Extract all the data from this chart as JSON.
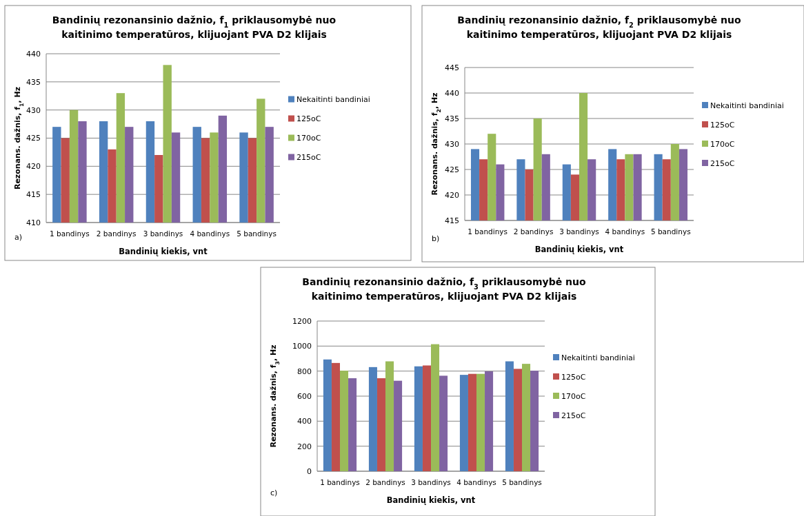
{
  "chart_data": [
    {
      "type": "bar",
      "title": "Bandinių rezonansinio dažnio, f$_{1}$ priklausomybė nuo kaitinimo temperatūros, klijuojant PVA D2 klijais",
      "xlabel": "Bandinių kiekis, vnt",
      "ylabel": "Rezonans. dažnis, f$_{1}$, Hz",
      "categories": [
        "1 bandinys",
        "2 bandinys",
        "3 bandinys",
        "4 bandinys",
        "5 bandinys"
      ],
      "ylim": [
        410,
        440
      ],
      "yticks": [
        410,
        415,
        420,
        425,
        430,
        435,
        440
      ],
      "grid": "y",
      "legend": "right",
      "annotations": [
        "a)"
      ],
      "series": [
        {
          "name": "Nekaitinti bandiniai",
          "color": "#4f81bd",
          "values": [
            427,
            428,
            428,
            427,
            426
          ]
        },
        {
          "name": "125oC",
          "color": "#c0504d",
          "values": [
            425,
            423,
            422,
            425,
            425
          ]
        },
        {
          "name": "170oC",
          "color": "#9bbb59",
          "values": [
            430,
            433,
            438,
            426,
            432
          ]
        },
        {
          "name": "215oC",
          "color": "#8064a2",
          "values": [
            428,
            427,
            426,
            429,
            427
          ]
        }
      ]
    },
    {
      "type": "bar",
      "title": "Bandinių rezonansinio dažnio, f$_{2}$ priklausomybė nuo kaitinimo temperatūros, klijuojant PVA D2 klijais",
      "xlabel": "Bandinių kiekis, vnt",
      "ylabel": "Rezonans. dažnis, f$_{2}$, Hz",
      "categories": [
        "1 bandinys",
        "2 bandinys",
        "3 bandinys",
        "4 bandinys",
        "5 bandinys"
      ],
      "ylim": [
        415,
        445
      ],
      "yticks": [
        415,
        420,
        425,
        430,
        435,
        440,
        445
      ],
      "grid": "y",
      "legend": "right",
      "annotations": [
        "b)"
      ],
      "series": [
        {
          "name": "Nekaitinti bandiniai",
          "color": "#4f81bd",
          "values": [
            429,
            427,
            426,
            429,
            428
          ]
        },
        {
          "name": "125oC",
          "color": "#c0504d",
          "values": [
            427,
            425,
            424,
            427,
            427
          ]
        },
        {
          "name": "170oC",
          "color": "#9bbb59",
          "values": [
            432,
            435,
            440,
            428,
            430
          ]
        },
        {
          "name": "215oC",
          "color": "#8064a2",
          "values": [
            426,
            428,
            427,
            428,
            429
          ]
        }
      ]
    },
    {
      "type": "bar",
      "title": "Bandinių rezonansinio dažnio, f$_{3}$ priklausomybė nuo kaitinimo temperatūros, klijuojant PVA D2 klijais",
      "xlabel": "Bandinių kiekis, vnt",
      "ylabel": "Rezonans. dažnis, f$_{3}$, Hz",
      "categories": [
        "1 bandinys",
        "2 bandinys",
        "3 bandinys",
        "4 bandinys",
        "5 bandinys"
      ],
      "ylim": [
        0,
        1200
      ],
      "yticks": [
        0,
        200,
        400,
        600,
        800,
        1000,
        1200
      ],
      "grid": "y",
      "legend": "right",
      "annotations": [
        "c)"
      ],
      "series": [
        {
          "name": "Nekaitinti bandiniai",
          "color": "#4f81bd",
          "values": [
            893,
            832,
            838,
            770,
            878
          ]
        },
        {
          "name": "125oC",
          "color": "#c0504d",
          "values": [
            865,
            743,
            845,
            778,
            818
          ]
        },
        {
          "name": "170oC",
          "color": "#9bbb59",
          "values": [
            803,
            878,
            1015,
            778,
            858
          ]
        },
        {
          "name": "215oC",
          "color": "#8064a2",
          "values": [
            743,
            723,
            763,
            798,
            803
          ]
        }
      ]
    }
  ]
}
